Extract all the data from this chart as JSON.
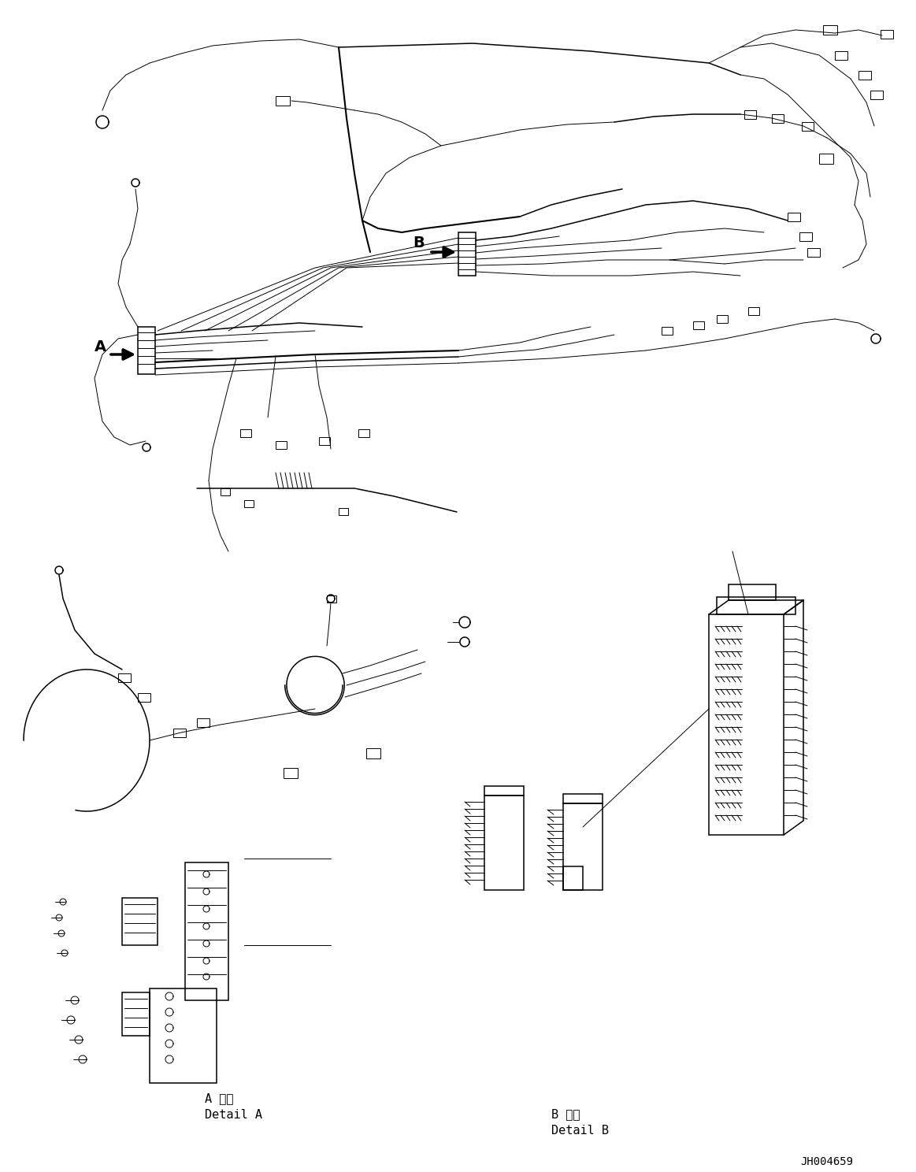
{
  "bg_color": "#ffffff",
  "line_color": "#000000",
  "fig_width": 11.63,
  "fig_height": 14.88,
  "dpi": 100,
  "label_A": "A",
  "label_B": "B",
  "detail_A_japanese": "A 詳細",
  "detail_A_english": "Detail A",
  "detail_B_japanese": "B 詳細",
  "detail_B_english": "Detail B",
  "drawing_number": "JH004659",
  "lw_thin": 0.7,
  "lw_med": 1.1,
  "lw_thick": 1.5
}
